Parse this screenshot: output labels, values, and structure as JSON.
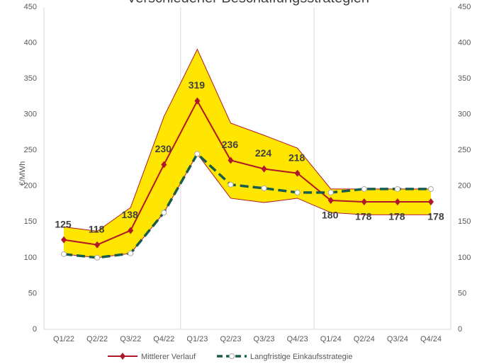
{
  "chart_data": {
    "type": "line",
    "title": "Verschiedener Beschaffungsstrategien",
    "ylabel": "€/MWh",
    "categories": [
      "Q1/22",
      "Q2/22",
      "Q3/22",
      "Q4/22",
      "Q1/23",
      "Q2/23",
      "Q3/23",
      "Q4/23",
      "Q1/24",
      "Q2/24",
      "Q3/24",
      "Q4/24"
    ],
    "band": {
      "color": "#ffe600",
      "edge": "#b0182a",
      "upper": [
        143,
        137,
        170,
        297,
        391,
        288,
        271,
        253,
        196,
        196,
        196,
        196
      ],
      "lower": [
        105,
        100,
        106,
        163,
        245,
        183,
        177,
        183,
        163,
        160,
        160,
        160
      ]
    },
    "series": [
      {
        "name": "Mittlerer Verlauf",
        "color": "#b0182a",
        "values": [
          125,
          118,
          138,
          230,
          319,
          236,
          224,
          218,
          180,
          178,
          178,
          178
        ],
        "labels": true
      },
      {
        "name": "Langfristige Einkaufsstrategie",
        "color": "#1a5c4c",
        "dashed": true,
        "values": [
          105,
          100,
          106,
          163,
          245,
          202,
          197,
          191,
          191,
          196,
          196,
          196
        ]
      }
    ],
    "ylim": [
      0,
      450
    ],
    "yticks": [
      0,
      50,
      100,
      150,
      200,
      250,
      300,
      350,
      400,
      450
    ],
    "y2lim": [
      0,
      450
    ],
    "y2ticks": [
      0,
      50,
      100,
      150,
      200,
      250,
      300,
      350,
      400,
      450
    ],
    "legend": "bottom"
  }
}
